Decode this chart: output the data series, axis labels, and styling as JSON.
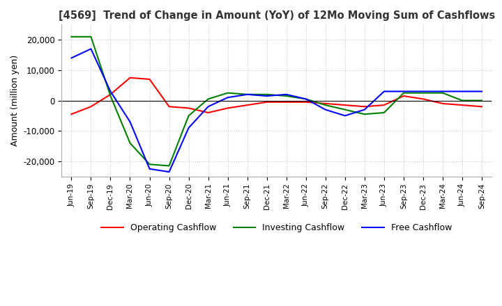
{
  "title": "[4569]  Trend of Change in Amount (YoY) of 12Mo Moving Sum of Cashflows",
  "ylabel": "Amount (million yen)",
  "x_labels": [
    "Jun-19",
    "Sep-19",
    "Dec-19",
    "Mar-20",
    "Jun-20",
    "Sep-20",
    "Dec-20",
    "Mar-21",
    "Jun-21",
    "Sep-21",
    "Dec-21",
    "Mar-22",
    "Jun-22",
    "Sep-22",
    "Dec-22",
    "Mar-23",
    "Jun-23",
    "Sep-23",
    "Dec-23",
    "Mar-24",
    "Jun-24",
    "Sep-24"
  ],
  "operating": [
    -4500,
    -2000,
    2000,
    7500,
    7000,
    -2000,
    -2500,
    -4000,
    -2500,
    -1500,
    -500,
    -500,
    -500,
    -1000,
    -1500,
    -2000,
    -1500,
    1500,
    500,
    -1000,
    -1500,
    -2000
  ],
  "investing": [
    21000,
    21000,
    1500,
    -14000,
    -21000,
    -21500,
    -5000,
    500,
    2500,
    2000,
    2000,
    1500,
    500,
    -1500,
    -3000,
    -4500,
    -4000,
    2500,
    2500,
    2500,
    0,
    0
  ],
  "free": [
    14000,
    17000,
    3000,
    -7000,
    -22500,
    -23500,
    -9000,
    -2000,
    1000,
    2000,
    1500,
    2000,
    500,
    -3000,
    -5000,
    -3000,
    3000,
    3000,
    3000,
    3000,
    3000,
    3000
  ],
  "ylim": [
    -25000,
    25000
  ],
  "yticks": [
    -20000,
    -10000,
    0,
    10000,
    20000
  ],
  "operating_color": "#ff0000",
  "investing_color": "#008000",
  "free_color": "#0000ff",
  "background_color": "#ffffff",
  "grid_color": "#c8c8c8"
}
